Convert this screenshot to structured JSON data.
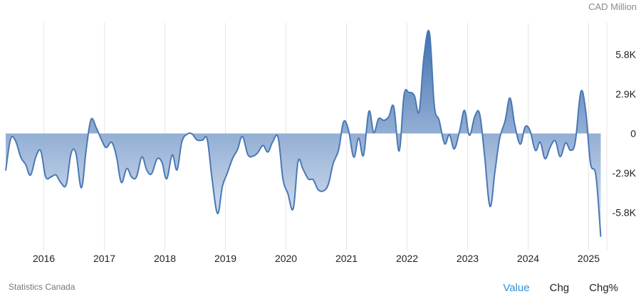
{
  "unit_label": "CAD Million",
  "source": "Statistics Canada",
  "tabs": [
    {
      "label": "Value",
      "active": true
    },
    {
      "label": "Chg",
      "active": false
    },
    {
      "label": "Chg%",
      "active": false
    }
  ],
  "colors": {
    "line": "#4a78b4",
    "fill_top": "#3f6fb0",
    "fill_bottom": "#dbe5f3",
    "grid": "#e6e6e6",
    "tab_active": "#2f8fd8"
  },
  "chart_data": {
    "type": "area",
    "title": "",
    "xlabel": "",
    "ylabel": "CAD Million",
    "grid": true,
    "xlim": [
      2015.37,
      2025.3
    ],
    "ylim": [
      -7700,
      7700
    ],
    "y_ticks": [
      {
        "value": 5800,
        "label": "5.8K"
      },
      {
        "value": 2900,
        "label": "2.9K"
      },
      {
        "value": 0,
        "label": "0"
      },
      {
        "value": -2900,
        "label": "-2.9K"
      },
      {
        "value": -5800,
        "label": "-5.8K"
      }
    ],
    "x_ticks": [
      "2016",
      "2017",
      "2018",
      "2019",
      "2020",
      "2021",
      "2022",
      "2023",
      "2024",
      "2025"
    ],
    "series": [
      {
        "values": [
          [
            2015.37,
            -2720
          ],
          [
            2015.45,
            -430
          ],
          [
            2015.53,
            -520
          ],
          [
            2015.62,
            -1750
          ],
          [
            2015.7,
            -2280
          ],
          [
            2015.78,
            -3050
          ],
          [
            2015.87,
            -1690
          ],
          [
            2015.95,
            -1290
          ],
          [
            2016.03,
            -3180
          ],
          [
            2016.12,
            -3180
          ],
          [
            2016.2,
            -3040
          ],
          [
            2016.28,
            -3600
          ],
          [
            2016.37,
            -3750
          ],
          [
            2016.45,
            -1460
          ],
          [
            2016.53,
            -1460
          ],
          [
            2016.62,
            -3980
          ],
          [
            2016.7,
            -1180
          ],
          [
            2016.78,
            1030
          ],
          [
            2016.87,
            380
          ],
          [
            2016.95,
            -440
          ],
          [
            2017.03,
            -1030
          ],
          [
            2017.12,
            -650
          ],
          [
            2017.2,
            -1700
          ],
          [
            2017.28,
            -3590
          ],
          [
            2017.37,
            -2570
          ],
          [
            2017.45,
            -3200
          ],
          [
            2017.53,
            -3180
          ],
          [
            2017.62,
            -1720
          ],
          [
            2017.7,
            -2690
          ],
          [
            2017.78,
            -2950
          ],
          [
            2017.87,
            -1880
          ],
          [
            2017.95,
            -2100
          ],
          [
            2018.03,
            -3320
          ],
          [
            2018.12,
            -1570
          ],
          [
            2018.2,
            -2670
          ],
          [
            2018.28,
            -620
          ],
          [
            2018.37,
            -40
          ],
          [
            2018.45,
            -40
          ],
          [
            2018.53,
            -480
          ],
          [
            2018.62,
            -490
          ],
          [
            2018.7,
            -450
          ],
          [
            2018.78,
            -3370
          ],
          [
            2018.87,
            -5870
          ],
          [
            2018.95,
            -3880
          ],
          [
            2019.03,
            -2910
          ],
          [
            2019.12,
            -1810
          ],
          [
            2019.2,
            -1180
          ],
          [
            2019.28,
            -220
          ],
          [
            2019.37,
            -1550
          ],
          [
            2019.45,
            -1670
          ],
          [
            2019.53,
            -1430
          ],
          [
            2019.62,
            -880
          ],
          [
            2019.7,
            -1360
          ],
          [
            2019.78,
            -620
          ],
          [
            2019.87,
            -300
          ],
          [
            2019.95,
            -3340
          ],
          [
            2020.03,
            -4390
          ],
          [
            2020.12,
            -5510
          ],
          [
            2020.2,
            -2050
          ],
          [
            2020.28,
            -2610
          ],
          [
            2020.37,
            -3340
          ],
          [
            2020.45,
            -3390
          ],
          [
            2020.53,
            -4110
          ],
          [
            2020.62,
            -4210
          ],
          [
            2020.7,
            -3720
          ],
          [
            2020.78,
            -2200
          ],
          [
            2020.87,
            -1200
          ],
          [
            2020.95,
            840
          ],
          [
            2021.03,
            300
          ],
          [
            2021.12,
            -1730
          ],
          [
            2021.2,
            -340
          ],
          [
            2021.28,
            -1600
          ],
          [
            2021.37,
            1620
          ],
          [
            2021.45,
            70
          ],
          [
            2021.53,
            1080
          ],
          [
            2021.62,
            960
          ],
          [
            2021.7,
            1240
          ],
          [
            2021.78,
            1960
          ],
          [
            2021.87,
            -1280
          ],
          [
            2021.95,
            2810
          ],
          [
            2022.03,
            3010
          ],
          [
            2022.12,
            2790
          ],
          [
            2022.2,
            1610
          ],
          [
            2022.28,
            5660
          ],
          [
            2022.37,
            7380
          ],
          [
            2022.45,
            2060
          ],
          [
            2022.53,
            970
          ],
          [
            2022.62,
            -750
          ],
          [
            2022.7,
            -90
          ],
          [
            2022.78,
            -1130
          ],
          [
            2022.87,
            220
          ],
          [
            2022.95,
            1690
          ],
          [
            2023.03,
            -130
          ],
          [
            2023.12,
            1270
          ],
          [
            2023.2,
            1420
          ],
          [
            2023.28,
            -1600
          ],
          [
            2023.37,
            -5340
          ],
          [
            2023.45,
            -2860
          ],
          [
            2023.53,
            -370
          ],
          [
            2023.62,
            930
          ],
          [
            2023.7,
            2600
          ],
          [
            2023.78,
            620
          ],
          [
            2023.87,
            -790
          ],
          [
            2023.95,
            480
          ],
          [
            2024.03,
            220
          ],
          [
            2024.12,
            -1240
          ],
          [
            2024.2,
            -640
          ],
          [
            2024.28,
            -1850
          ],
          [
            2024.37,
            -950
          ],
          [
            2024.45,
            -550
          ],
          [
            2024.53,
            -1700
          ],
          [
            2024.62,
            -690
          ],
          [
            2024.7,
            -1230
          ],
          [
            2024.78,
            -590
          ],
          [
            2024.87,
            3040
          ],
          [
            2024.95,
            1700
          ],
          [
            2025.03,
            -2170
          ],
          [
            2025.12,
            -3100
          ],
          [
            2025.2,
            -7580
          ]
        ]
      }
    ]
  }
}
